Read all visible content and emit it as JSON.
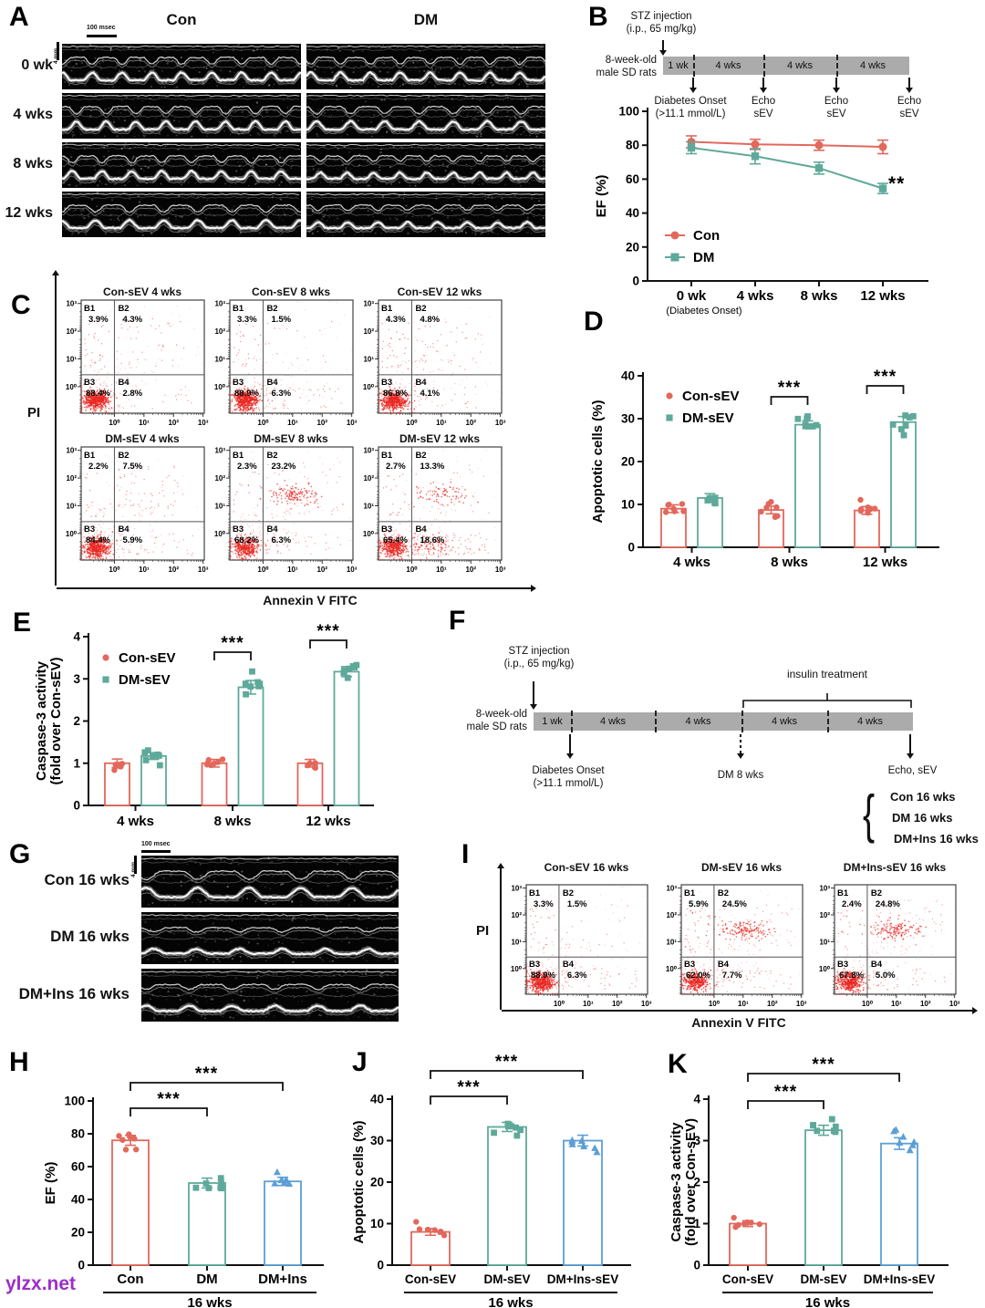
{
  "watermark": "ylzx.net",
  "colors": {
    "con": "#E2685C",
    "dm": "#5FA99A",
    "ins": "#5C9FD6",
    "flow_dot": "#E8251F",
    "timeline_bar": "#ABABAB",
    "watermark": "#9C2FC9",
    "axis": "#111111"
  },
  "flow_axis_ticks": [
    "10⁰",
    "10¹",
    "10²",
    "10³"
  ],
  "panel_a": {
    "label": "A",
    "col_headers": [
      "Con",
      "DM"
    ],
    "row_labels": [
      "0 wk",
      "4 wks",
      "8 wks",
      "12 wks"
    ],
    "scalebar_time": "100 msec",
    "scalebar_depth": "4 mm"
  },
  "panel_b": {
    "label": "B",
    "timeline": {
      "stz": [
        "STZ injection",
        "(i.p., 65 mg/kg)"
      ],
      "subject": [
        "8-week-old",
        "male SD rats"
      ],
      "segments": [
        "1 wk",
        "4 wks",
        "4 wks",
        "4 wks"
      ],
      "markers": [
        [
          "Diabetes Onset",
          "(>11.1 mmol/L)"
        ],
        [
          "Echo",
          "sEV"
        ],
        [
          "Echo",
          "sEV"
        ],
        [
          "Echo",
          "sEV"
        ]
      ]
    }
  },
  "panel_c": {
    "label": "C",
    "ylabel": "PI",
    "xlabel": "Annexin V FITC",
    "plots": [
      {
        "title": "Con-sEV 4 wks",
        "quadrants": [
          {
            "name": "B1",
            "pct": "3.9%"
          },
          {
            "name": "B2",
            "pct": "4.3%"
          },
          {
            "name": "B3",
            "pct": "88.4%"
          },
          {
            "name": "B4",
            "pct": "2.8%"
          }
        ]
      },
      {
        "title": "Con-sEV 8 wks",
        "quadrants": [
          {
            "name": "B1",
            "pct": "3.3%"
          },
          {
            "name": "B2",
            "pct": "1.5%"
          },
          {
            "name": "B3",
            "pct": "88.9%"
          },
          {
            "name": "B4",
            "pct": "6.3%"
          }
        ]
      },
      {
        "title": "Con-sEV 12 wks",
        "quadrants": [
          {
            "name": "B1",
            "pct": "4.3%"
          },
          {
            "name": "B2",
            "pct": "4.8%"
          },
          {
            "name": "B3",
            "pct": "86.8%"
          },
          {
            "name": "B4",
            "pct": "4.1%"
          }
        ]
      },
      {
        "title": "DM-sEV 4 wks",
        "quadrants": [
          {
            "name": "B1",
            "pct": "2.2%"
          },
          {
            "name": "B2",
            "pct": "7.5%"
          },
          {
            "name": "B3",
            "pct": "84.4%"
          },
          {
            "name": "B4",
            "pct": "5.9%"
          }
        ]
      },
      {
        "title": "DM-sEV 8 wks",
        "quadrants": [
          {
            "name": "B1",
            "pct": "2.3%"
          },
          {
            "name": "B2",
            "pct": "23.2%"
          },
          {
            "name": "B3",
            "pct": "68.2%"
          },
          {
            "name": "B4",
            "pct": "6.3%"
          }
        ]
      },
      {
        "title": "DM-sEV 12 wks",
        "quadrants": [
          {
            "name": "B1",
            "pct": "2.7%"
          },
          {
            "name": "B2",
            "pct": "13.3%"
          },
          {
            "name": "B3",
            "pct": "65.4%"
          },
          {
            "name": "B4",
            "pct": "18.6%"
          }
        ]
      }
    ]
  },
  "panel_d": {
    "label": "D"
  },
  "panel_e": {
    "label": "E"
  },
  "panel_f": {
    "label": "F",
    "stz": [
      "STZ injection",
      "(i.p., 65 mg/kg)"
    ],
    "insulin": "insulin treatment",
    "subject": [
      "8-week-old",
      "male SD rats"
    ],
    "segments": [
      "1 wk",
      "4 wks",
      "4 wks",
      "4 wks",
      "4 wks"
    ],
    "onset": [
      "Diabetes Onset",
      "(>11.1 mmol/L)"
    ],
    "dm8": "DM 8 wks",
    "echo": "Echo, sEV",
    "brace": "{",
    "groups": [
      "Con 16 wks",
      "DM 16 wks",
      "DM+Ins 16 wks"
    ]
  },
  "panel_g": {
    "label": "G",
    "row_labels": [
      "Con 16 wks",
      "DM 16 wks",
      "DM+Ins 16 wks"
    ],
    "scalebar_time": "100 msec",
    "scalebar_depth": "4 mm"
  },
  "panel_h": {
    "label": "H"
  },
  "panel_i": {
    "label": "I",
    "ylabel": "PI",
    "xlabel": "Annexin V FITC",
    "plots": [
      {
        "title": "Con-sEV 16 wks",
        "quadrants": [
          {
            "name": "B1",
            "pct": "3.3%"
          },
          {
            "name": "B2",
            "pct": "1.5%"
          },
          {
            "name": "B3",
            "pct": "88.9%"
          },
          {
            "name": "B4",
            "pct": "6.3%"
          }
        ]
      },
      {
        "title": "DM-sEV 16 wks",
        "quadrants": [
          {
            "name": "B1",
            "pct": "5.9%"
          },
          {
            "name": "B2",
            "pct": "24.5%"
          },
          {
            "name": "B3",
            "pct": "62.0%"
          },
          {
            "name": "B4",
            "pct": "7.7%"
          }
        ]
      },
      {
        "title": "DM+Ins-sEV 16 wks",
        "quadrants": [
          {
            "name": "B1",
            "pct": "2.4%"
          },
          {
            "name": "B2",
            "pct": "24.8%"
          },
          {
            "name": "B3",
            "pct": "67.8%"
          },
          {
            "name": "B4",
            "pct": "5.0%"
          }
        ]
      }
    ]
  },
  "panel_j": {
    "label": "J"
  },
  "panel_k": {
    "label": "K"
  },
  "chart_data": [
    {
      "id": "B",
      "type": "line",
      "ylabel": "EF (%)",
      "ylim": [
        0,
        100
      ],
      "yticks": [
        0,
        20,
        40,
        60,
        80,
        100
      ],
      "categories": [
        "0 wk",
        "4 wks",
        "8 wks",
        "12 wks"
      ],
      "x_sublabels": [
        "(Diabetes Onset)",
        "",
        "",
        ""
      ],
      "series": [
        {
          "name": "Con",
          "color": "con",
          "marker": "circle",
          "values": [
            82,
            80.5,
            80,
            79
          ],
          "errors": [
            3.5,
            3,
            3,
            4
          ]
        },
        {
          "name": "DM",
          "color": "dm",
          "marker": "square",
          "values": [
            78.5,
            73.5,
            66.5,
            54.5
          ],
          "errors": [
            3.5,
            4.5,
            3.5,
            3
          ]
        }
      ],
      "annotation": "**",
      "legend_position": "bottom-left",
      "grid": false
    },
    {
      "id": "D",
      "type": "grouped_bar",
      "ylabel": "Apoptotic cells (%)",
      "ylim": [
        0,
        40
      ],
      "yticks": [
        0,
        10,
        20,
        30,
        40
      ],
      "categories": [
        "4 wks",
        "8 wks",
        "12 wks"
      ],
      "series": [
        {
          "name": "Con-sEV",
          "color": "con",
          "marker": "circle",
          "values": [
            9,
            8.7,
            8.6
          ],
          "errors": [
            0.9,
            0.9,
            0.9
          ]
        },
        {
          "name": "DM-sEV",
          "color": "dm",
          "marker": "square",
          "values": [
            11.5,
            28.6,
            29.2
          ],
          "errors": [
            1.0,
            0.9,
            1.3
          ]
        }
      ],
      "significance": [
        {
          "category": "8 wks",
          "text": "***"
        },
        {
          "category": "12 wks",
          "text": "***"
        }
      ],
      "legend_position": "top-left",
      "grid": false
    },
    {
      "id": "E",
      "type": "grouped_bar",
      "ylabel": "Caspase-3 activity",
      "ylabel2": "(fold over Con-sEV)",
      "ylim": [
        0,
        4
      ],
      "yticks": [
        0,
        1,
        2,
        3,
        4
      ],
      "categories": [
        "4 wks",
        "8 wks",
        "12 wks"
      ],
      "series": [
        {
          "name": "Con-sEV",
          "color": "con",
          "marker": "circle",
          "values": [
            1,
            1,
            1
          ],
          "errors": [
            0.1,
            0.09,
            0.09
          ]
        },
        {
          "name": "DM-sEV",
          "color": "dm",
          "marker": "square",
          "values": [
            1.17,
            2.8,
            3.17
          ],
          "errors": [
            0.08,
            0.16,
            0.12
          ]
        }
      ],
      "significance": [
        {
          "category": "8 wks",
          "text": "***"
        },
        {
          "category": "12 wks",
          "text": "***"
        }
      ],
      "legend_position": "top-left",
      "grid": false
    },
    {
      "id": "H",
      "type": "bar",
      "ylabel": "EF (%)",
      "ylim": [
        0,
        100
      ],
      "yticks": [
        0,
        20,
        40,
        60,
        80,
        100
      ],
      "categories": [
        "Con",
        "DM",
        "DM+Ins"
      ],
      "values": [
        76,
        50,
        51
      ],
      "errors": [
        3,
        3,
        2.5
      ],
      "colors": [
        "con",
        "dm",
        "ins"
      ],
      "markers": [
        "circle",
        "square",
        "triangle"
      ],
      "group_label": "16 wks",
      "significance": [
        {
          "from": "Con",
          "to": "DM",
          "text": "***"
        },
        {
          "from": "Con",
          "to": "DM+Ins",
          "text": "***"
        }
      ],
      "grid": false
    },
    {
      "id": "J",
      "type": "bar",
      "ylabel": "Apoptotic cells (%)",
      "ylim": [
        0,
        40
      ],
      "yticks": [
        0,
        10,
        20,
        30,
        40
      ],
      "categories": [
        "Con-sEV",
        "DM-sEV",
        "DM+Ins-sEV"
      ],
      "values": [
        8,
        33.3,
        30
      ],
      "errors": [
        0.8,
        1.1,
        1.3
      ],
      "colors": [
        "con",
        "dm",
        "ins"
      ],
      "markers": [
        "circle",
        "square",
        "triangle"
      ],
      "group_label": "16 wks",
      "significance": [
        {
          "from": "Con-sEV",
          "to": "DM-sEV",
          "text": "***"
        },
        {
          "from": "Con-sEV",
          "to": "DM+Ins-sEV",
          "text": "***"
        }
      ],
      "grid": false
    },
    {
      "id": "K",
      "type": "bar",
      "ylabel": "Caspase-3 activity",
      "ylabel2": "(fold over Con-sEV)",
      "ylim": [
        0,
        4
      ],
      "yticks": [
        0,
        1,
        2,
        3,
        4
      ],
      "categories": [
        "Con-sEV",
        "DM-sEV",
        "DM+Ins-sEV"
      ],
      "values": [
        1,
        3.25,
        2.93
      ],
      "errors": [
        0.07,
        0.12,
        0.14
      ],
      "colors": [
        "con",
        "dm",
        "ins"
      ],
      "markers": [
        "circle",
        "square",
        "triangle"
      ],
      "group_label": "16 wks",
      "significance": [
        {
          "from": "Con-sEV",
          "to": "DM-sEV",
          "text": "***"
        },
        {
          "from": "Con-sEV",
          "to": "DM+Ins-sEV",
          "text": "***"
        }
      ],
      "grid": false
    }
  ]
}
